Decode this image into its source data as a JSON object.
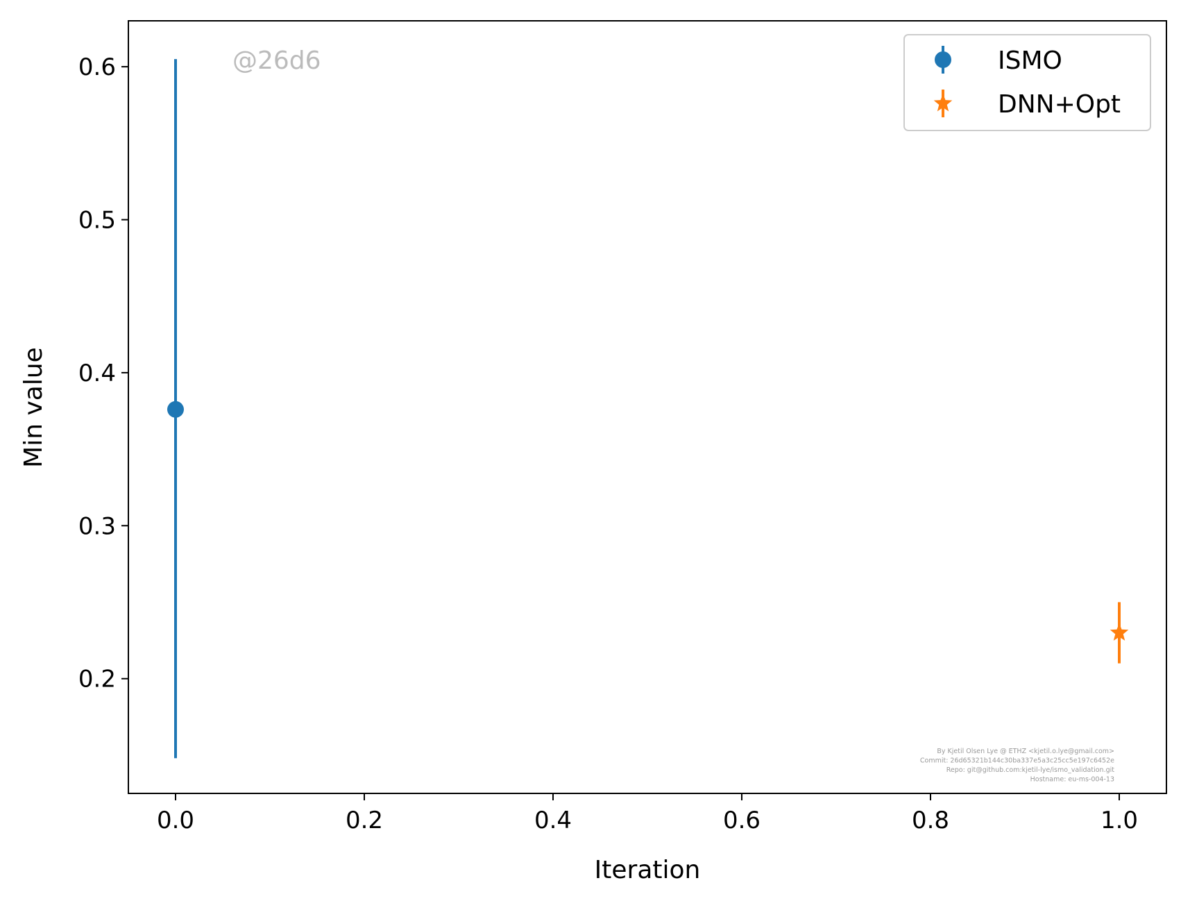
{
  "chart_data": {
    "type": "scatter",
    "xlabel": "Iteration",
    "ylabel": "Min value",
    "xlim": [
      -0.05,
      1.05
    ],
    "ylim": [
      0.125,
      0.63
    ],
    "xticks": [
      "0.0",
      "0.2",
      "0.4",
      "0.6",
      "0.8",
      "1.0"
    ],
    "yticks": [
      "0.2",
      "0.3",
      "0.4",
      "0.5",
      "0.6"
    ],
    "legend_position": "top-right",
    "series": [
      {
        "name": "ISMO",
        "color": "#1f77b4",
        "marker": "circle",
        "points": [
          {
            "x": 0.0,
            "y": 0.376,
            "ymin": 0.148,
            "ymax": 0.605
          }
        ]
      },
      {
        "name": "DNN+Opt",
        "color": "#ff7f0e",
        "marker": "star",
        "points": [
          {
            "x": 1.0,
            "y": 0.23,
            "ymin": 0.21,
            "ymax": 0.25
          }
        ]
      }
    ],
    "watermark": "@26d6",
    "credits": [
      "By Kjetil Olsen Lye @ ETHZ <kjetil.o.lye@gmail.com>",
      "Commit: 26d65321b144c30ba337e5a3c25cc5e197c6452e",
      "Repo: git@github.com:kjetil-lye/ismo_validation.git",
      "Hostname: eu-ms-004-13"
    ]
  }
}
